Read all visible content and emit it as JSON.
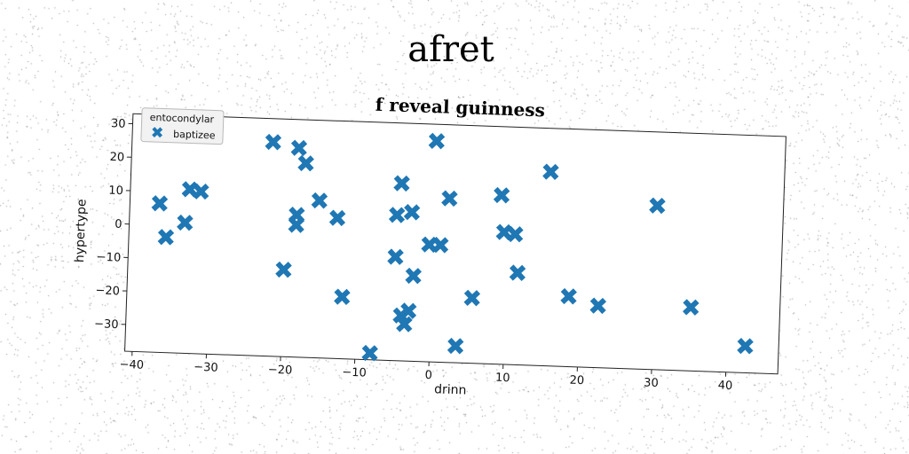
{
  "page_title": "afret",
  "chart_data": {
    "type": "scatter",
    "title": "f reveal guinness",
    "xlabel": "drinn",
    "ylabel": "hypertype",
    "xlim": [
      -41,
      47
    ],
    "ylim": [
      -38,
      33
    ],
    "xticks": [
      -40,
      -30,
      -20,
      -10,
      0,
      10,
      20,
      30,
      40
    ],
    "yticks": [
      -30,
      -20,
      -10,
      0,
      10,
      20,
      30
    ],
    "grid": false,
    "legend": {
      "title": "entocondylar",
      "position": "top-left"
    },
    "series": [
      {
        "name": "baptizee",
        "color": "#1f77b4",
        "marker": "x-filled",
        "points": [
          [
            -22,
            26
          ],
          [
            -18.5,
            24.5
          ],
          [
            -17.5,
            20
          ],
          [
            0,
            28
          ],
          [
            15.5,
            20
          ],
          [
            -4.5,
            15
          ],
          [
            -33,
            11
          ],
          [
            -31.5,
            10.5
          ],
          [
            -15.5,
            9
          ],
          [
            2,
            11
          ],
          [
            9,
            12.5
          ],
          [
            30,
            11
          ],
          [
            -37,
            6.5
          ],
          [
            -5,
            5.5
          ],
          [
            -3,
            6.5
          ],
          [
            -18.5,
            4.5
          ],
          [
            -13,
            4
          ],
          [
            -18.5,
            1.5
          ],
          [
            -33.5,
            1
          ],
          [
            9.5,
            1.5
          ],
          [
            11,
            1
          ],
          [
            -36,
            -3.5
          ],
          [
            -0.5,
            -3
          ],
          [
            1,
            -3
          ],
          [
            -5,
            -7
          ],
          [
            11.5,
            -10.5
          ],
          [
            -20,
            -12
          ],
          [
            -2.5,
            -12.5
          ],
          [
            18.5,
            -17
          ],
          [
            5.5,
            -18.5
          ],
          [
            22.5,
            -19.5
          ],
          [
            35,
            -19
          ],
          [
            -12,
            -19.5
          ],
          [
            -3,
            -23
          ],
          [
            -4,
            -24.5
          ],
          [
            -3.5,
            -27
          ],
          [
            42.5,
            -30
          ],
          [
            3.5,
            -33
          ],
          [
            -8,
            -36
          ]
        ]
      }
    ]
  }
}
